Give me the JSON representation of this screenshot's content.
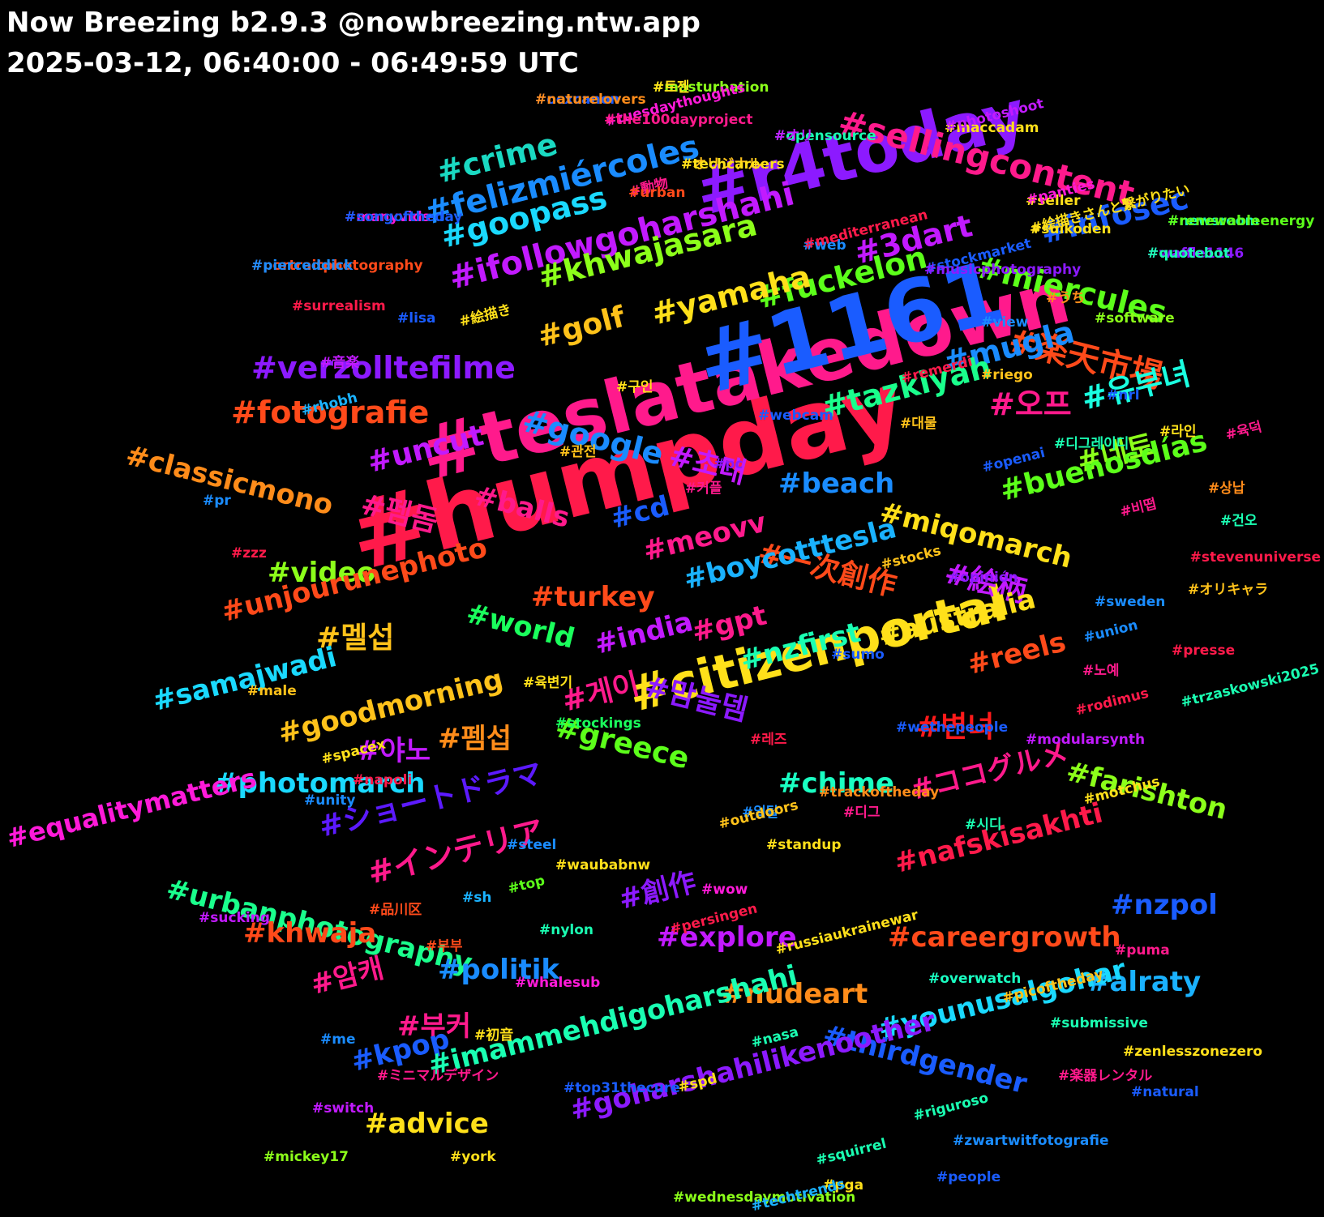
{
  "header": {
    "title": "Now Breezing b2.9.3 @nowbreezing.ntw.app",
    "range": "2025-03-12, 06:40:00 - 06:49:59 UTC"
  },
  "tags": [
    {
      "t": "#humpday",
      "c": "#ff1a4a"
    },
    {
      "t": "#teslatakedown",
      "c": "#ff1a8c"
    },
    {
      "t": "#1161",
      "c": "#1a5cff"
    },
    {
      "t": "#r4today",
      "c": "#8c1aff"
    },
    {
      "t": "#citizenportal",
      "c": "#ffe01a"
    },
    {
      "t": "#sellingcontent",
      "c": "#ff1a8c"
    },
    {
      "t": "#ifollowgoharshahi",
      "c": "#c21aff"
    },
    {
      "t": "#felizmiércoles",
      "c": "#1a8cff"
    },
    {
      "t": "#crime",
      "c": "#1ad9c2"
    },
    {
      "t": "#goopass",
      "c": "#1ad9ff"
    },
    {
      "t": "#khwajasara",
      "c": "#8cff1a"
    },
    {
      "t": "#fuckelon",
      "c": "#5cff1a"
    },
    {
      "t": "#3dart",
      "c": "#c21aff"
    },
    {
      "t": "#miercules",
      "c": "#5cff1a"
    },
    {
      "t": "#infosec",
      "c": "#1a5cff"
    },
    {
      "t": "#楽天市場",
      "c": "#ff4a1a"
    },
    {
      "t": "#yamaha",
      "c": "#ffe01a"
    },
    {
      "t": "#golf",
      "c": "#ffc21a"
    },
    {
      "t": "#verzolltefilme",
      "c": "#8c1aff"
    },
    {
      "t": "#mugla",
      "c": "#1a8cff"
    },
    {
      "t": "#fotografie",
      "c": "#ff4a1a"
    },
    {
      "t": "#유부녀",
      "c": "#1affe0"
    },
    {
      "t": "#오프",
      "c": "#ff1a8c"
    },
    {
      "t": "#google",
      "c": "#1a8cff"
    },
    {
      "t": "#tazkiyah",
      "c": "#1aff8c"
    },
    {
      "t": "#초대",
      "c": "#c21aff"
    },
    {
      "t": "#네토",
      "c": "#8cff1a"
    },
    {
      "t": "#uncut",
      "c": "#c21aff"
    },
    {
      "t": "#classicmono",
      "c": "#ff8c1a"
    },
    {
      "t": "#펨돔",
      "c": "#ff1a8c"
    },
    {
      "t": "#balls",
      "c": "#ff1a8c"
    },
    {
      "t": "#beach",
      "c": "#1a8cff"
    },
    {
      "t": "#buenosdías",
      "c": "#5cff1a"
    },
    {
      "t": "#cd",
      "c": "#1a5cff"
    },
    {
      "t": "#meovv",
      "c": "#ff1a8c"
    },
    {
      "t": "#miqomarch",
      "c": "#ffe01a"
    },
    {
      "t": "#一次創作",
      "c": "#ff4a1a"
    },
    {
      "t": "#絵柄",
      "c": "#c21aff"
    },
    {
      "t": "#video",
      "c": "#8cff1a"
    },
    {
      "t": "#unjourunephoto",
      "c": "#ff4a1a"
    },
    {
      "t": "#boycotttesla",
      "c": "#1ab2ff"
    },
    {
      "t": "#turkey",
      "c": "#ff4a1a"
    },
    {
      "t": "#world",
      "c": "#1aff5c"
    },
    {
      "t": "#gpt",
      "c": "#ff1a8c"
    },
    {
      "t": "#india",
      "c": "#c21aff"
    },
    {
      "t": "#australia",
      "c": "#ffe01a"
    },
    {
      "t": "#멜섭",
      "c": "#ffc21a"
    },
    {
      "t": "#nzfirst",
      "c": "#1affb2"
    },
    {
      "t": "#reels",
      "c": "#ff4a1a"
    },
    {
      "t": "#맘눌뎀",
      "c": "#8c1aff"
    },
    {
      "t": "#samajwadi",
      "c": "#1ad9ff"
    },
    {
      "t": "#게이",
      "c": "#ff1a8c"
    },
    {
      "t": "#goodmorning",
      "c": "#ffc21a"
    },
    {
      "t": "#변녀",
      "c": "#ff1a1a"
    },
    {
      "t": "#야노",
      "c": "#c21aff"
    },
    {
      "t": "#펨섭",
      "c": "#ff8c1a"
    },
    {
      "t": "#greece",
      "c": "#5cff1a"
    },
    {
      "t": "#ココグルメ",
      "c": "#ff1a8c"
    },
    {
      "t": "#photomarch",
      "c": "#1ad9ff"
    },
    {
      "t": "#chime",
      "c": "#1affc2"
    },
    {
      "t": "#farishton",
      "c": "#8cff1a"
    },
    {
      "t": "#equalitymatters",
      "c": "#ff1ad9"
    },
    {
      "t": "#ショートドラマ",
      "c": "#5c1aff"
    },
    {
      "t": "#インテリア",
      "c": "#ff1a8c"
    },
    {
      "t": "#nafskisakhti",
      "c": "#ff1a4a"
    },
    {
      "t": "#urbanphotography",
      "c": "#1aff8c"
    },
    {
      "t": "#創作",
      "c": "#8c1aff"
    },
    {
      "t": "#nzpol",
      "c": "#1a5cff"
    },
    {
      "t": "#explore",
      "c": "#c21aff"
    },
    {
      "t": "#khwaja",
      "c": "#ff4a1a"
    },
    {
      "t": "#careergrowth",
      "c": "#ff4a1a"
    },
    {
      "t": "#politik",
      "c": "#1a8cff"
    },
    {
      "t": "#alraty",
      "c": "#1ab2ff"
    },
    {
      "t": "#younusalgohar",
      "c": "#1ad9ff"
    },
    {
      "t": "#암캐",
      "c": "#ff1a8c"
    },
    {
      "t": "#nudeart",
      "c": "#ff8c1a"
    },
    {
      "t": "#부커",
      "c": "#ff1a8c"
    },
    {
      "t": "#kpop",
      "c": "#1a5cff"
    },
    {
      "t": "#thirdgender",
      "c": "#1a5cff"
    },
    {
      "t": "#imammehdigoharshahi",
      "c": "#1affb2"
    },
    {
      "t": "#advice",
      "c": "#ffe01a"
    },
    {
      "t": "#goharshahilikenoother",
      "c": "#8c1aff"
    },
    {
      "t": "#masturbation",
      "c": "#8cff1a"
    },
    {
      "t": "#ocxcanon",
      "c": "#1a5cff"
    },
    {
      "t": "#tuesdaythoughts",
      "c": "#ff1ad9"
    },
    {
      "t": "#maccadam",
      "c": "#ffe01a"
    },
    {
      "t": "#opensource",
      "c": "#1affb2"
    },
    {
      "t": "#オリジナル",
      "c": "#ffc21a"
    },
    {
      "t": "#動物",
      "c": "#ff1a8c"
    },
    {
      "t": "#seller",
      "c": "#ffe01a"
    },
    {
      "t": "#newsroom",
      "c": "#1affb2"
    },
    {
      "t": "#manyvids",
      "c": "#ff1ad9"
    },
    {
      "t": "#絵描きさんと繋がりたい",
      "c": "#ffe01a"
    },
    {
      "t": "#web",
      "c": "#1a8cff"
    },
    {
      "t": "#waffle1146",
      "c": "#8c1aff"
    },
    {
      "t": "#portraitphotography",
      "c": "#ff4a1a"
    },
    {
      "t": "#stockmarket",
      "c": "#1a5cff"
    },
    {
      "t": "#うち",
      "c": "#ff8c1a"
    },
    {
      "t": "#surrealism",
      "c": "#ff1a4a"
    },
    {
      "t": "#lisa",
      "c": "#1a5cff"
    },
    {
      "t": "#絵描き",
      "c": "#ffe01a"
    },
    {
      "t": "#software",
      "c": "#8cff1a"
    },
    {
      "t": "#view",
      "c": "#1a8cff"
    },
    {
      "t": "#音楽",
      "c": "#c21aff"
    },
    {
      "t": "#remerdi",
      "c": "#ff1a4a"
    },
    {
      "t": "#riego",
      "c": "#ffc21a"
    },
    {
      "t": "#구인",
      "c": "#ffe01a"
    },
    {
      "t": "#nrl",
      "c": "#1a5cff"
    },
    {
      "t": "#rhobh",
      "c": "#1ab2ff"
    },
    {
      "t": "#webcam",
      "c": "#1a5cff"
    },
    {
      "t": "#대물",
      "c": "#ffc21a"
    },
    {
      "t": "#라인",
      "c": "#ffe01a"
    },
    {
      "t": "#육덕",
      "c": "#ff1a8c"
    },
    {
      "t": "#디그레이디",
      "c": "#1affb2"
    },
    {
      "t": "#관전",
      "c": "#ffc21a"
    },
    {
      "t": "#pc",
      "c": "#8c1aff"
    },
    {
      "t": "#openai",
      "c": "#1a5cff"
    },
    {
      "t": "#커플",
      "c": "#ff1a8c"
    },
    {
      "t": "#상납",
      "c": "#ff8c1a"
    },
    {
      "t": "#pr",
      "c": "#1a8cff"
    },
    {
      "t": "#비떱",
      "c": "#ff1a8c"
    },
    {
      "t": "#건오",
      "c": "#1affb2"
    },
    {
      "t": "#zzz",
      "c": "#ff1a4a"
    },
    {
      "t": "#stevenuniverse",
      "c": "#ff1a4a"
    },
    {
      "t": "#stocks",
      "c": "#ffc21a"
    },
    {
      "t": "#opinión",
      "c": "#8c1aff"
    },
    {
      "t": "#オリキャラ",
      "c": "#ffc21a"
    },
    {
      "t": "#sweden",
      "c": "#1a8cff"
    },
    {
      "t": "#union",
      "c": "#1a8cff"
    },
    {
      "t": "#sumo",
      "c": "#1a5cff"
    },
    {
      "t": "#presse",
      "c": "#ff1a4a"
    },
    {
      "t": "#노예",
      "c": "#ff1a8c"
    },
    {
      "t": "#trzaskowski2025",
      "c": "#1affb2"
    },
    {
      "t": "#male",
      "c": "#ffc21a"
    },
    {
      "t": "#육변기",
      "c": "#ffe01a"
    },
    {
      "t": "#stockings",
      "c": "#1aff5c"
    },
    {
      "t": "#rodimus",
      "c": "#ff1a4a"
    },
    {
      "t": "#wethepeople",
      "c": "#1a5cff"
    },
    {
      "t": "#modularsynth",
      "c": "#c21aff"
    },
    {
      "t": "#레즈",
      "c": "#ff1a4a"
    },
    {
      "t": "#spacex",
      "c": "#ffe01a"
    },
    {
      "t": "#napoli",
      "c": "#ff1a4a"
    },
    {
      "t": "#unity",
      "c": "#1a8cff"
    },
    {
      "t": "#trackoftheday",
      "c": "#ff8c1a"
    },
    {
      "t": "#motchus",
      "c": "#ffe01a"
    },
    {
      "t": "#일탈",
      "c": "#1a8cff"
    },
    {
      "t": "#디그",
      "c": "#ff1a8c"
    },
    {
      "t": "#시디",
      "c": "#1affb2"
    },
    {
      "t": "#outdoors",
      "c": "#ffc21a"
    },
    {
      "t": "#standup",
      "c": "#ffe01a"
    },
    {
      "t": "#steel",
      "c": "#1a8cff"
    },
    {
      "t": "#waubabnw",
      "c": "#ffe01a"
    },
    {
      "t": "#top",
      "c": "#5cff1a"
    },
    {
      "t": "#wow",
      "c": "#ff1ad9"
    },
    {
      "t": "#sh",
      "c": "#1ab2ff"
    },
    {
      "t": "#品川区",
      "c": "#ff4a1a"
    },
    {
      "t": "#persingen",
      "c": "#ff1a4a"
    },
    {
      "t": "#sucking",
      "c": "#c21aff"
    },
    {
      "t": "#nylon",
      "c": "#1affb2"
    },
    {
      "t": "#부부",
      "c": "#ff4a1a"
    },
    {
      "t": "#russiaukrainewar",
      "c": "#ffe01a"
    },
    {
      "t": "#puma",
      "c": "#ff1a8c"
    },
    {
      "t": "#whalesub",
      "c": "#ff1ad9"
    },
    {
      "t": "#overwatch",
      "c": "#1affc2"
    },
    {
      "t": "#picoftheday",
      "c": "#ffc21a"
    },
    {
      "t": "#submissive",
      "c": "#1affb2"
    },
    {
      "t": "#me",
      "c": "#1a8cff"
    },
    {
      "t": "#初音",
      "c": "#ffe01a"
    },
    {
      "t": "#nasa",
      "c": "#1affb2"
    },
    {
      "t": "#zenlesszonezero",
      "c": "#ffe01a"
    },
    {
      "t": "#ミニマルデザイン",
      "c": "#ff1a8c"
    },
    {
      "t": "#top31thecure",
      "c": "#1a5cff"
    },
    {
      "t": "#spd",
      "c": "#ffe01a"
    },
    {
      "t": "#楽器レンタル",
      "c": "#ff1a8c"
    },
    {
      "t": "#natural",
      "c": "#1a5cff"
    },
    {
      "t": "#switch",
      "c": "#c21aff"
    },
    {
      "t": "#riguroso",
      "c": "#1affb2"
    },
    {
      "t": "#zwartwitfotografie",
      "c": "#1a8cff"
    },
    {
      "t": "#mickey17",
      "c": "#8cff1a"
    },
    {
      "t": "#york",
      "c": "#ffe01a"
    },
    {
      "t": "#squirrel",
      "c": "#1affb2"
    },
    {
      "t": "#people",
      "c": "#1a5cff"
    },
    {
      "t": "#pga",
      "c": "#ffe01a"
    },
    {
      "t": "#wednesdaymotivation",
      "c": "#8cff1a"
    },
    {
      "t": "#techtrends",
      "c": "#1ab2ff"
    },
    {
      "t": "#트젠",
      "c": "#ffe01a"
    },
    {
      "t": "#naturelovers",
      "c": "#ff8c1a"
    },
    {
      "t": "#the100dayproject",
      "c": "#ff1a8c"
    },
    {
      "t": "#photoshoot",
      "c": "#c21aff"
    },
    {
      "t": "#オリ",
      "c": "#c21aff"
    },
    {
      "t": "#techcareers",
      "c": "#ffe01a"
    },
    {
      "t": "#urban",
      "c": "#ff4a1a"
    },
    {
      "t": "#panties",
      "c": "#ff1ad9"
    },
    {
      "t": "#renewableenergy",
      "c": "#5cff1a"
    },
    {
      "t": "#songoftheday",
      "c": "#1a5cff"
    },
    {
      "t": "#suikoden",
      "c": "#ffe01a"
    },
    {
      "t": "#mediterranean",
      "c": "#ff1a4a"
    },
    {
      "t": "#quotebot",
      "c": "#1affb2"
    },
    {
      "t": "#pierceddick",
      "c": "#1a8cff"
    },
    {
      "t": "#musicphotography",
      "c": "#8c1aff"
    }
  ]
}
